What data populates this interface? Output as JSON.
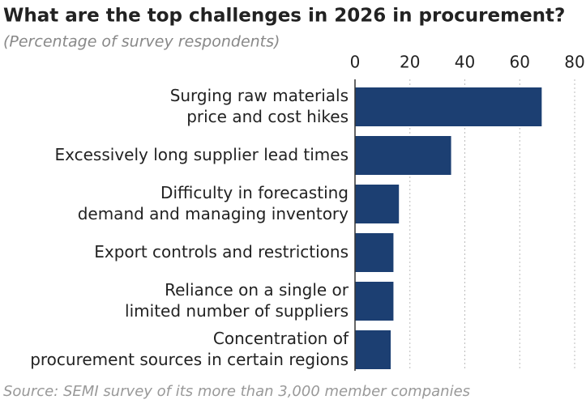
{
  "chart_data": {
    "type": "hbar",
    "title": "What are the top challenges in 2026 in procurement?",
    "subtitle": "(Percentage of survey respondents)",
    "source": "Source: SEMI survey of its more than 3,000 member companies",
    "categories": [
      "Surging raw materials\nprice and cost hikes",
      "Excessively long supplier lead times",
      "Difficulty in forecasting\ndemand and managing inventory",
      "Export controls and restrictions",
      "Reliance on a single or\nlimited number of suppliers",
      "Concentration of\nprocurement sources in certain regions"
    ],
    "values": [
      68,
      35,
      16,
      14,
      14,
      13
    ],
    "color": "#1c3f72",
    "xlim": [
      0,
      80
    ],
    "xticks": [
      0,
      20,
      40,
      60,
      80
    ],
    "grid": true
  }
}
